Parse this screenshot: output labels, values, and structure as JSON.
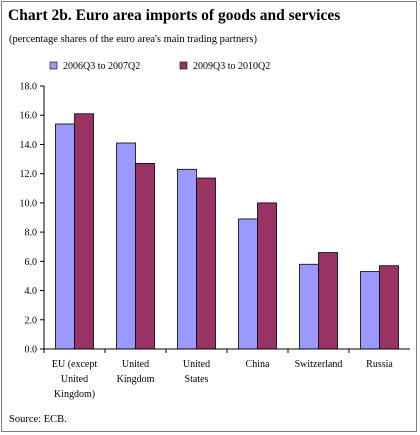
{
  "title": "Chart 2b. Euro area imports of goods and services",
  "subtitle": "(percentage shares of the euro area's main trading partners)",
  "source": "Source: ECB.",
  "colors": {
    "series_1": "#9999ff",
    "series_2": "#993366",
    "axis": "#000000"
  },
  "chart_data": {
    "type": "bar",
    "title": "Chart 2b. Euro area imports of goods and services",
    "subtitle": "(percentage shares of the euro area's main trading partners)",
    "categories": [
      [
        "EU (except",
        "United",
        "Kingdom)"
      ],
      [
        "United",
        "Kingdom"
      ],
      [
        "United",
        "States"
      ],
      [
        "China"
      ],
      [
        "Switzerland"
      ],
      [
        "Russia"
      ]
    ],
    "series": [
      {
        "name": "2006Q3 to 2007Q2",
        "values": [
          15.4,
          14.1,
          12.3,
          8.9,
          5.8,
          5.3
        ]
      },
      {
        "name": "2009Q3 to 2010Q2",
        "values": [
          16.1,
          12.7,
          11.7,
          10.0,
          6.6,
          5.7
        ]
      }
    ],
    "ylim": [
      0,
      18
    ],
    "yticks": [
      "0.0",
      "2.0",
      "4.0",
      "6.0",
      "8.0",
      "10.0",
      "12.0",
      "14.0",
      "16.0",
      "18.0"
    ],
    "xlabel": "",
    "ylabel": "",
    "grid": false,
    "legend_position": "top"
  }
}
